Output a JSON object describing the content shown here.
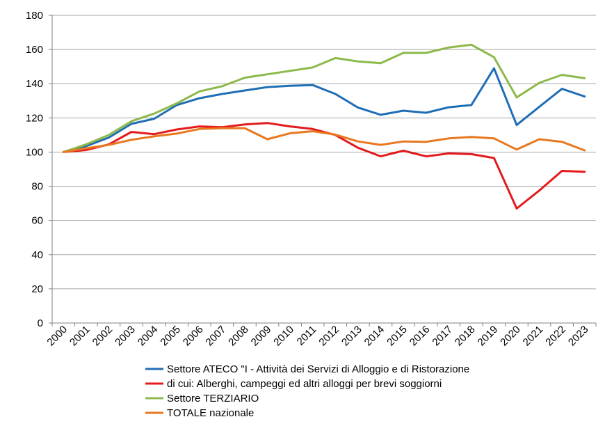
{
  "chart_data": {
    "type": "line",
    "title": "",
    "xlabel": "",
    "ylabel": "",
    "ylim": [
      0,
      180
    ],
    "y_ticks": [
      0,
      20,
      40,
      60,
      80,
      100,
      120,
      140,
      160,
      180
    ],
    "grid": true,
    "legend_position": "bottom",
    "x": [
      "2000",
      "2001",
      "2002",
      "2003",
      "2004",
      "2005",
      "2006",
      "2007",
      "2008",
      "2009",
      "2010",
      "2011",
      "2012",
      "2013",
      "2014",
      "2015",
      "2016",
      "2017",
      "2018",
      "2019",
      "2020",
      "2021",
      "2022",
      "2023"
    ],
    "series": [
      {
        "name": "Settore ATECO \"I - Attività dei Servizi di Alloggio e di Ristorazione",
        "color": "#1f6eb5",
        "values": [
          100,
          103.5,
          108.5,
          116.5,
          119.5,
          127.5,
          131.5,
          134,
          136,
          138,
          138.8,
          139.2,
          134,
          126,
          121.8,
          124.2,
          123,
          126.2,
          127.5,
          149,
          115.8,
          126.5,
          137,
          132.5
        ]
      },
      {
        "name": "di cui:  Alberghi, campeggi ed altri alloggi per brevi soggiorni",
        "color": "#e41a1c",
        "values": [
          100,
          101.2,
          104.5,
          111.8,
          110.5,
          113.2,
          115,
          114.5,
          116.2,
          117,
          115,
          113.5,
          110,
          102.5,
          97.5,
          100.8,
          97.5,
          99.2,
          98.8,
          96.5,
          67,
          77.5,
          89,
          88.5
        ]
      },
      {
        "name": "Settore TERZIARIO",
        "color": "#8cb94a",
        "values": [
          100,
          104.5,
          110,
          118,
          122.5,
          128.5,
          135.5,
          138.5,
          143.5,
          145.5,
          147.5,
          149.5,
          155,
          153,
          152,
          158,
          158,
          161.2,
          162.8,
          155.5,
          132,
          140.5,
          145.2,
          143.2
        ]
      },
      {
        "name": "TOTALE nazionale",
        "color": "#e8781f",
        "values": [
          100,
          102.2,
          104.2,
          107.2,
          109.2,
          110.8,
          113.5,
          114,
          114,
          107.5,
          111,
          112.2,
          110.2,
          106.2,
          104.2,
          106.2,
          106,
          108,
          108.8,
          108,
          101.5,
          107.5,
          106,
          101
        ]
      }
    ]
  }
}
